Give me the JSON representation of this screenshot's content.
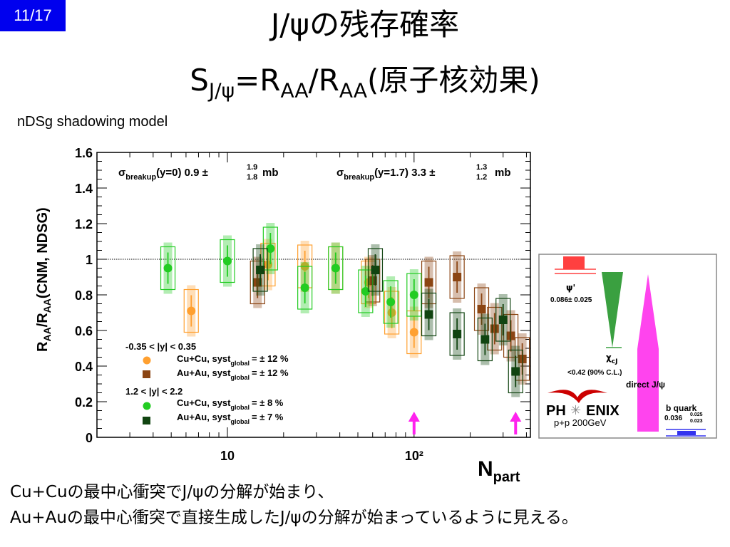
{
  "slide_number": "11/17",
  "title_line1": "J/ψの残存確率",
  "title_line2": {
    "s": "S",
    "s_sub": "J/ψ",
    "eq": "=R",
    "aa1": "AA",
    "slash": "/R",
    "aa2": "AA",
    "paren": "(原子核効果)"
  },
  "model_note": "nDSg shadowing model",
  "bottom_text_1": "Cu+Cuの最中心衝突でJ/ψの分解が始まり、",
  "bottom_text_2": "Au+Auの最中心衝突で直接生成したJ/ψの分解が始まっているように見える。",
  "chart_data": {
    "type": "scatter",
    "x_scale": "log",
    "xlim": [
      2,
      420
    ],
    "ylim": [
      0,
      1.6
    ],
    "reference_line_y": 1,
    "xlabel": "N_part",
    "ylabel": "R_AA/R_AA(CNM, NDSG)",
    "x_tick_labels": [
      "10",
      "10²"
    ],
    "y_tick_labels": [
      "0",
      "0.2",
      "0.4",
      "0.6",
      "0.8",
      "1",
      "1.2",
      "1.4",
      "1.6"
    ],
    "annotations": {
      "sigma_left": {
        "pre": "σ",
        "sub": "breakup",
        "mid": "(y=0)  0.9  ±",
        "sup_err": "1.9",
        "sub_err": "1.8",
        "unit": "mb"
      },
      "sigma_right": {
        "pre": "σ",
        "sub": "breakup",
        "mid": "(y=1.7)  3.3  ±",
        "sup_err": "1.3",
        "sub_err": "1.2",
        "unit": "mb"
      }
    },
    "arrows_x": [
      100,
      350
    ],
    "arrow_color": "#ff22ee",
    "legend": {
      "group1": "-0.35 < |y| < 0.35",
      "group2": "1.2 < |y| < 2.2",
      "entries": [
        {
          "label": "Cu+Cu, syst",
          "sub": "global",
          "val": "= ± 12 %",
          "color": "#ffa030",
          "marker": "circle"
        },
        {
          "label": "Au+Au, syst",
          "sub": "global",
          "val": "= ± 12 %",
          "color": "#8b4513",
          "marker": "square"
        },
        {
          "label": "Cu+Cu, syst",
          "sub": "global",
          "val": "= ± 8 %",
          "color": "#22cc22",
          "marker": "circle"
        },
        {
          "label": "Au+Au, syst",
          "sub": "global",
          "val": "= ± 7 %",
          "color": "#114411",
          "marker": "square"
        }
      ]
    },
    "series": [
      {
        "name": "Cu+Cu -0.35 < |y| < 0.35",
        "color": "#ffa030",
        "marker": "circle",
        "points": [
          [
            6.4,
            0.71
          ],
          [
            16.5,
            0.97
          ],
          [
            26,
            0.96
          ],
          [
            38,
            0.95
          ],
          [
            57,
            0.87
          ],
          [
            76,
            0.7
          ],
          [
            100,
            0.59
          ]
        ]
      },
      {
        "name": "Au+Au -0.35 < |y| < 0.35",
        "color": "#8b4513",
        "marker": "square",
        "points": [
          [
            14.5,
            0.87
          ],
          [
            60,
            0.88
          ],
          [
            120,
            0.87
          ],
          [
            170,
            0.9
          ],
          [
            230,
            0.72
          ],
          [
            270,
            0.61
          ],
          [
            330,
            0.57
          ],
          [
            380,
            0.44
          ]
        ]
      },
      {
        "name": "Cu+Cu 1.2 < |y| < 2.2",
        "color": "#22cc22",
        "marker": "circle",
        "points": [
          [
            4.8,
            0.95
          ],
          [
            10,
            0.99
          ],
          [
            17,
            1.06
          ],
          [
            26,
            0.84
          ],
          [
            38,
            0.95
          ],
          [
            55,
            0.82
          ],
          [
            75,
            0.76
          ],
          [
            100,
            0.8
          ]
        ]
      },
      {
        "name": "Au+Au 1.2 < |y| < 2.2",
        "color": "#114411",
        "marker": "square",
        "points": [
          [
            15,
            0.94
          ],
          [
            62,
            0.94
          ],
          [
            120,
            0.69
          ],
          [
            170,
            0.58
          ],
          [
            240,
            0.55
          ],
          [
            300,
            0.66
          ],
          [
            350,
            0.37
          ]
        ]
      }
    ]
  },
  "inset": {
    "psi_prime_label": "ψ'",
    "psi_prime_value": "0.086± 0.025",
    "chi_label": "χ",
    "chi_sub": "cJ",
    "chi_value": "<0.42 (90% C.L.)",
    "direct_label": "direct J/ψ",
    "bquark_label": "b quark",
    "bquark_value": "0.036",
    "bquark_err_up": "0.025",
    "bquark_err_dn": "0.023",
    "logo_left": "PH",
    "logo_right": "ENIX",
    "pp_text": "p+p 200GeV",
    "colors": {
      "psi": "#ff4040",
      "chi": "#3aa040",
      "direct": "#ff44ee",
      "bquark": "#3333ee",
      "logo": "#cc0000"
    }
  }
}
